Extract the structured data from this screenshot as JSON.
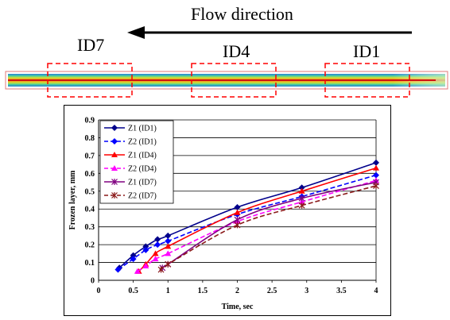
{
  "figure": {
    "flow_label": "Flow direction",
    "regions": [
      {
        "key": "id7",
        "label": "ID7"
      },
      {
        "key": "id4",
        "label": "ID4"
      },
      {
        "key": "id1",
        "label": "ID1"
      }
    ]
  },
  "chart_data": {
    "type": "line",
    "title": "",
    "xlabel": "Time, sec",
    "ylabel": "Frozen layer, mm",
    "xlim": [
      0,
      4
    ],
    "ylim": [
      0,
      0.9
    ],
    "xticks": [
      0,
      0.5,
      1,
      1.5,
      2,
      2.5,
      3,
      3.5,
      4
    ],
    "yticks": [
      0,
      0.1,
      0.2,
      0.3,
      0.4,
      0.5,
      0.6,
      0.7,
      0.8,
      0.9
    ],
    "grid": "horizontal",
    "legend_position": "top-left",
    "series": [
      {
        "name": "Z1 (ID1)",
        "color": "#00008B",
        "dash": "solid",
        "marker": "diamond",
        "x": [
          0.3,
          0.5,
          0.68,
          0.85,
          1.0,
          2.0,
          2.93,
          4.0
        ],
        "y": [
          0.07,
          0.14,
          0.19,
          0.23,
          0.25,
          0.41,
          0.52,
          0.66
        ]
      },
      {
        "name": "Z2 (ID1)",
        "color": "#0000FF",
        "dash": "dashed",
        "marker": "diamond",
        "x": [
          0.28,
          0.5,
          0.68,
          0.85,
          1.0,
          2.0,
          2.93,
          4.0
        ],
        "y": [
          0.06,
          0.12,
          0.17,
          0.2,
          0.22,
          0.37,
          0.47,
          0.59
        ]
      },
      {
        "name": "Z1 (ID4)",
        "color": "#FF0000",
        "dash": "solid",
        "marker": "triangle",
        "x": [
          0.58,
          0.68,
          0.82,
          1.0,
          2.0,
          2.93,
          4.0
        ],
        "y": [
          0.05,
          0.09,
          0.15,
          0.19,
          0.38,
          0.5,
          0.63
        ]
      },
      {
        "name": "Z2 (ID4)",
        "color": "#FF00FF",
        "dash": "dashed",
        "marker": "triangle",
        "x": [
          0.56,
          0.68,
          0.82,
          1.0,
          2.0,
          2.93,
          4.0
        ],
        "y": [
          0.05,
          0.08,
          0.12,
          0.15,
          0.33,
          0.44,
          0.56
        ]
      },
      {
        "name": "Z1 (ID7)",
        "color": "#800080",
        "dash": "solid",
        "marker": "star",
        "x": [
          0.92,
          1.0,
          2.0,
          2.93,
          4.0
        ],
        "y": [
          0.07,
          0.09,
          0.34,
          0.46,
          0.55
        ]
      },
      {
        "name": "Z2 (ID7)",
        "color": "#8B1A1A",
        "dash": "dashed",
        "marker": "star",
        "x": [
          0.9,
          1.0,
          2.0,
          2.93,
          4.0
        ],
        "y": [
          0.06,
          0.09,
          0.31,
          0.42,
          0.53
        ]
      }
    ]
  }
}
